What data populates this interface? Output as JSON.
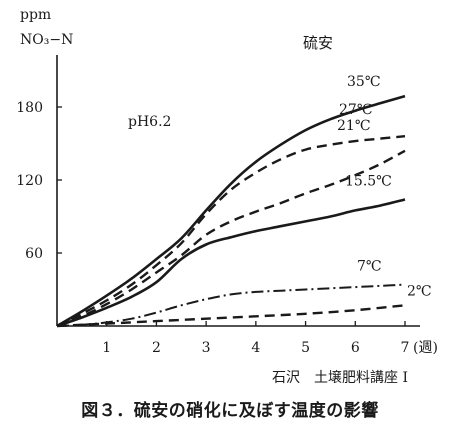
{
  "chart_data": {
    "type": "line",
    "title": "硫安",
    "ylabel_line1": "ppm",
    "ylabel_line2": "NO₃−N",
    "xunit": "(週)",
    "condition": "pH6.2",
    "source": "石沢　土壌肥料講座 I",
    "xlim": [
      0,
      7.4
    ],
    "ylim": [
      0,
      205
    ],
    "xticks": [
      1,
      2,
      3,
      4,
      5,
      6,
      7
    ],
    "yticks": [
      60,
      120,
      180
    ],
    "xticklabels": [
      "1",
      "2",
      "3",
      "4",
      "5",
      "6",
      "7"
    ],
    "yticklabels": [
      "60",
      "120",
      "180"
    ],
    "grid": false,
    "legend": "inline labels at line ends",
    "series": [
      {
        "name": "35℃",
        "dash": "solid",
        "x": [
          0,
          0.5,
          1,
          1.5,
          2,
          2.5,
          3,
          3.5,
          4,
          4.5,
          5,
          5.5,
          6,
          6.5,
          7
        ],
        "y": [
          0,
          12,
          25,
          39,
          55,
          72,
          95,
          117,
          135,
          149,
          161,
          170,
          177,
          183,
          189
        ]
      },
      {
        "name": "27℃",
        "dash": "dashed",
        "x": [
          0,
          0.5,
          1,
          1.5,
          2,
          2.5,
          3,
          3.5,
          4,
          4.5,
          5,
          5.5,
          6,
          6.5,
          7
        ],
        "y": [
          0,
          10,
          21,
          34,
          50,
          68,
          92,
          112,
          126,
          137,
          145,
          149,
          152,
          154,
          156
        ]
      },
      {
        "name": "21℃",
        "dash": "dashed",
        "x": [
          0,
          0.5,
          1,
          1.5,
          2,
          2.5,
          3,
          3.5,
          4,
          4.5,
          5,
          5.5,
          6,
          6.5,
          7
        ],
        "y": [
          0,
          8,
          18,
          30,
          44,
          58,
          75,
          86,
          94,
          101,
          109,
          116,
          124,
          133,
          144
        ]
      },
      {
        "name": "15.5℃",
        "dash": "solid",
        "x": [
          0,
          0.5,
          1,
          1.5,
          2,
          2.5,
          3,
          3.5,
          4,
          4.5,
          5,
          5.5,
          6,
          6.5,
          7
        ],
        "y": [
          0,
          7,
          15,
          24,
          36,
          55,
          67,
          73,
          78,
          82,
          86,
          90,
          95,
          99,
          104
        ]
      },
      {
        "name": "7℃",
        "dash": "dashdot",
        "x": [
          0,
          0.5,
          1,
          1.5,
          2,
          2.5,
          3,
          3.5,
          4,
          4.5,
          5,
          5.5,
          6,
          6.5,
          7
        ],
        "y": [
          0,
          1,
          3,
          6,
          11,
          17,
          22,
          26,
          28,
          29,
          30,
          31,
          32,
          33,
          34
        ]
      },
      {
        "name": "2℃",
        "dash": "dashed",
        "x": [
          0,
          1,
          1.5,
          2,
          3,
          4,
          5,
          6,
          7
        ],
        "y": [
          0,
          2,
          3,
          4,
          6,
          8,
          10,
          13,
          17
        ]
      }
    ]
  },
  "caption": "図３．硫安の硝化に及ぼす温度の影響"
}
